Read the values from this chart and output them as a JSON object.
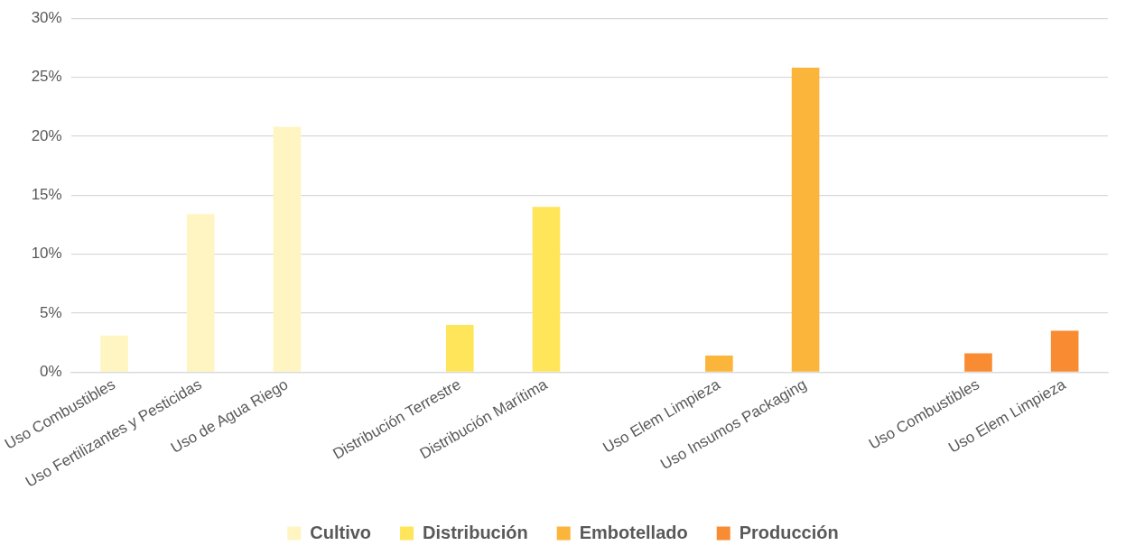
{
  "chart_data": {
    "type": "bar",
    "categories": [
      "Uso Combustibles",
      "Uso Fertilizantes y Pesticidas",
      "Uso de Agua Riego",
      null,
      "Distribución Terrestre",
      "Distribución Marítima",
      null,
      "Uso Elem Limpieza",
      "Uso Insumos Packaging",
      null,
      "Uso Combustibles",
      "Uso Elem Limpieza"
    ],
    "series": [
      {
        "name": "Cultivo",
        "color": "#fff5c2",
        "values": [
          3.1,
          13.4,
          20.8,
          null,
          null,
          null,
          null,
          null,
          null,
          null,
          null,
          null
        ]
      },
      {
        "name": "Distribución",
        "color": "#ffe55a",
        "values": [
          null,
          null,
          null,
          null,
          4.0,
          14.0,
          null,
          null,
          null,
          null,
          null,
          null
        ]
      },
      {
        "name": "Embotellado",
        "color": "#fbb53a",
        "values": [
          null,
          null,
          null,
          null,
          null,
          null,
          null,
          1.4,
          25.8,
          null,
          null,
          null
        ]
      },
      {
        "name": "Producción",
        "color": "#f98b32",
        "values": [
          null,
          null,
          null,
          null,
          null,
          null,
          null,
          null,
          null,
          null,
          1.6,
          3.5
        ]
      }
    ],
    "ylim": [
      0,
      30
    ],
    "yticks": [
      {
        "value": 0,
        "label": "0%"
      },
      {
        "value": 5,
        "label": "5%"
      },
      {
        "value": 10,
        "label": "10%"
      },
      {
        "value": 15,
        "label": "15%"
      },
      {
        "value": 20,
        "label": "20%"
      },
      {
        "value": 25,
        "label": "25%"
      },
      {
        "value": 30,
        "label": "30%"
      }
    ],
    "grid": "y",
    "legend": "bottom"
  }
}
